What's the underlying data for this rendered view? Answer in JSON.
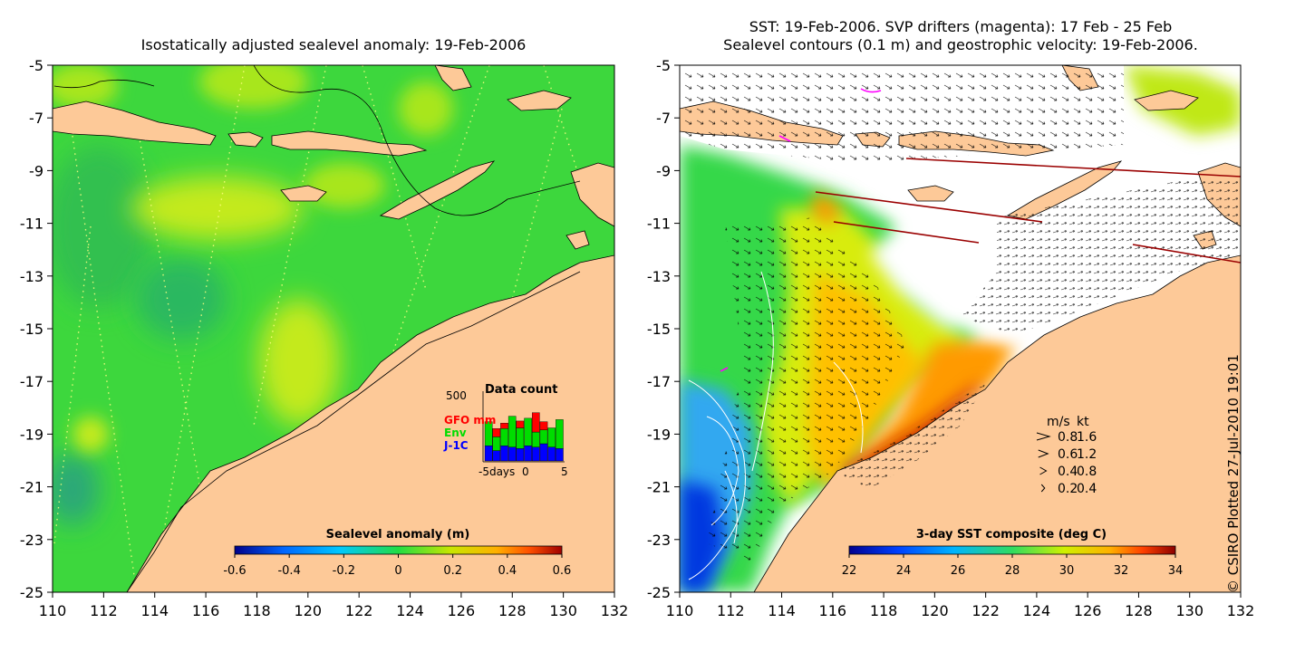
{
  "left_panel": {
    "title": "Isostatically adjusted sealevel anomaly: 19-Feb-2006",
    "colorbar": {
      "label": "Sealevel anomaly (m)",
      "ticks": [
        "-0.6",
        "-0.4",
        "-0.2",
        "0",
        "0.2",
        "0.4",
        "0.6"
      ]
    },
    "data_count_inset": {
      "title": "Data count",
      "y_max_label": "500",
      "legend": [
        {
          "name": "GFO mm",
          "color": "#ff0000"
        },
        {
          "name": "Env",
          "color": "#00dd00"
        },
        {
          "name": "J-1C",
          "color": "#0000ff"
        }
      ],
      "x_tick_labels": [
        "-5days",
        "0",
        "5"
      ],
      "bars": [
        {
          "j1c": 0.22,
          "env": 0.35,
          "gfo": 0.0
        },
        {
          "j1c": 0.15,
          "env": 0.2,
          "gfo": 0.12
        },
        {
          "j1c": 0.22,
          "env": 0.25,
          "gfo": 0.08
        },
        {
          "j1c": 0.2,
          "env": 0.45,
          "gfo": 0.0
        },
        {
          "j1c": 0.18,
          "env": 0.3,
          "gfo": 0.1
        },
        {
          "j1c": 0.22,
          "env": 0.4,
          "gfo": 0.0
        },
        {
          "j1c": 0.2,
          "env": 0.22,
          "gfo": 0.28
        },
        {
          "j1c": 0.25,
          "env": 0.2,
          "gfo": 0.12
        },
        {
          "j1c": 0.2,
          "env": 0.28,
          "gfo": 0.0
        },
        {
          "j1c": 0.18,
          "env": 0.42,
          "gfo": 0.0
        }
      ]
    }
  },
  "right_panel": {
    "title_line1": "SST: 19-Feb-2006. SVP drifters (magenta): 17 Feb - 25 Feb",
    "title_line2": "Sealevel contours (0.1 m) and geostrophic velocity: 19-Feb-2006.",
    "colorbar": {
      "label": "3-day SST composite (deg C)",
      "ticks": [
        "22",
        "24",
        "26",
        "28",
        "30",
        "32",
        "34"
      ]
    },
    "velocity_legend": {
      "header_ms": "m/s",
      "header_kt": "kt",
      "rows": [
        {
          "ms": "0.8",
          "kt": "1.6"
        },
        {
          "ms": "0.6",
          "kt": "1.2"
        },
        {
          "ms": "0.4",
          "kt": "0.8"
        },
        {
          "ms": "0.2",
          "kt": "0.4"
        }
      ]
    }
  },
  "axes": {
    "lat_labels": [
      "-5",
      "-7",
      "-9",
      "-11",
      "-13",
      "-15",
      "-17",
      "-19",
      "-21",
      "-23",
      "-25"
    ],
    "lon_labels": [
      "110",
      "112",
      "114",
      "116",
      "118",
      "120",
      "122",
      "124",
      "126",
      "128",
      "130",
      "132"
    ]
  },
  "colors": {
    "land": "#fdc998",
    "ocean_green": "#3dd73d",
    "sla_scale": [
      "#00008b",
      "#0066ff",
      "#00c8ff",
      "#22dd44",
      "#c8e600",
      "#ffb000",
      "#ff5000",
      "#a00000"
    ],
    "sst_scale": [
      "#000090",
      "#0040ff",
      "#00b4ff",
      "#30dc60",
      "#d0f000",
      "#ffb000",
      "#ff4000",
      "#8c0000"
    ]
  },
  "copyright": "© CSIRO Plotted 27-Jul-2010 19:01"
}
